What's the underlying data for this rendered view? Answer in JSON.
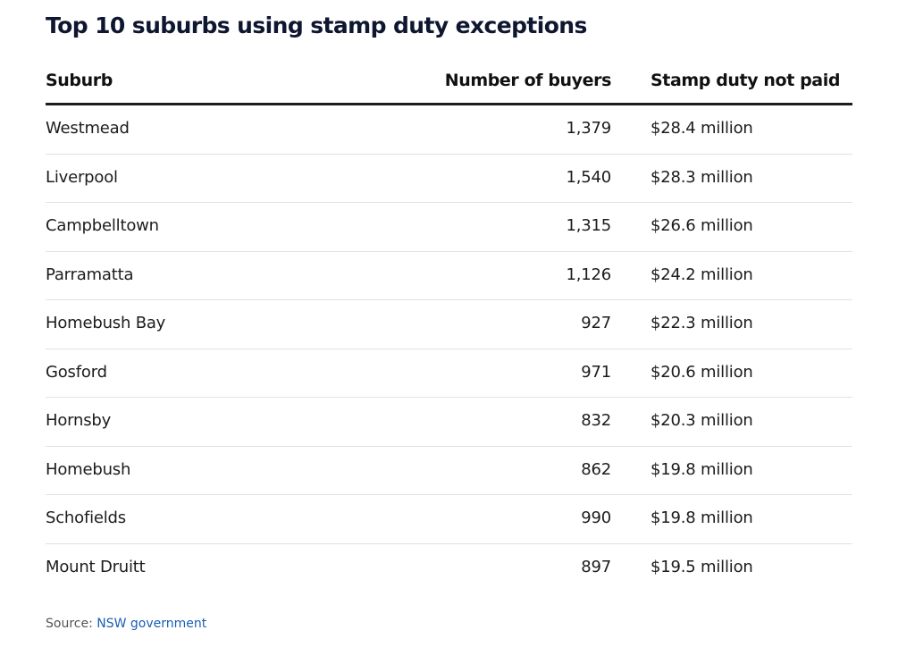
{
  "title": "Top 10 suburbs using stamp duty exceptions",
  "table": {
    "columns": [
      "Suburb",
      "Number of buyers",
      "Stamp duty not paid"
    ],
    "rows": [
      {
        "suburb": "Westmead",
        "buyers": "1,379",
        "duty": "$28.4 million"
      },
      {
        "suburb": "Liverpool",
        "buyers": "1,540",
        "duty": "$28.3 million"
      },
      {
        "suburb": "Campbelltown",
        "buyers": "1,315",
        "duty": "$26.6 million"
      },
      {
        "suburb": "Parramatta",
        "buyers": "1,126",
        "duty": "$24.2 million"
      },
      {
        "suburb": "Homebush Bay",
        "buyers": "927",
        "duty": "$22.3 million"
      },
      {
        "suburb": "Gosford",
        "buyers": "971",
        "duty": "$20.6 million"
      },
      {
        "suburb": "Hornsby",
        "buyers": "832",
        "duty": "$20.3 million"
      },
      {
        "suburb": "Homebush",
        "buyers": "862",
        "duty": "$19.8 million"
      },
      {
        "suburb": "Schofields",
        "buyers": "990",
        "duty": "$19.8 million"
      },
      {
        "suburb": "Mount Druitt",
        "buyers": "897",
        "duty": "$19.5 million"
      }
    ]
  },
  "source": {
    "prefix": "Source:",
    "link_text": "NSW government"
  },
  "colors": {
    "title": "#0e1630",
    "link": "#1a5fb4",
    "header_rule": "#1c1c1c",
    "row_divider": "#e2e2e2"
  }
}
